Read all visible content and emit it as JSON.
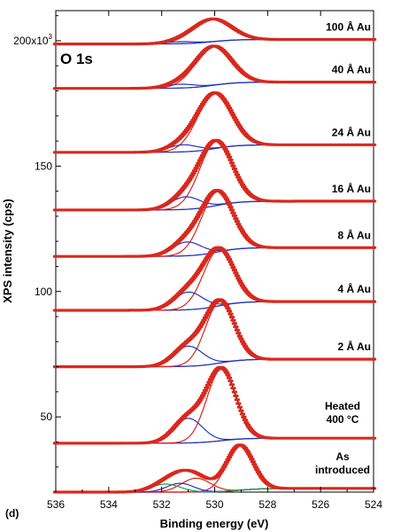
{
  "chart_data": {
    "type": "line",
    "panel_label": "(d)",
    "title": "O 1s",
    "xlabel": "Binding energy (eV)",
    "ylabel": "XPS intensity (cps)",
    "xlim": [
      536,
      524
    ],
    "ylim": [
      20000,
      212000
    ],
    "x_reversed": true,
    "x_ticks": [
      536,
      534,
      532,
      530,
      528,
      526,
      524
    ],
    "x_tick_labels": [
      "536",
      "534",
      "532",
      "530",
      "528",
      "526",
      "524"
    ],
    "y_ticks": [
      50000,
      100000,
      150000,
      200000
    ],
    "y_tick_labels": [
      "50",
      "100",
      "150",
      "200x10"
    ],
    "y_tick_exponent": "3",
    "grid": false,
    "colors": {
      "data_points": "#d9281e",
      "envelope_fit": "#1a1a1a",
      "component_fit": "#e0201a",
      "background": "#2233bb",
      "green_component": "#2a9a3a"
    },
    "series": [
      {
        "label": "100 Å Au",
        "baseline": 200500,
        "bg_drop": 1800,
        "peaks": [
          {
            "center": 530.1,
            "width": 0.72,
            "height": 9000
          },
          {
            "center": 531.3,
            "width": 0.55,
            "height": 800
          }
        ]
      },
      {
        "label": "40 Å Au",
        "baseline": 183500,
        "bg_drop": 2500,
        "peaks": [
          {
            "center": 530.05,
            "width": 0.68,
            "height": 15500
          },
          {
            "center": 531.3,
            "width": 0.55,
            "height": 1500
          }
        ]
      },
      {
        "label": "24 Å Au",
        "baseline": 158500,
        "bg_drop": 3000,
        "peaks": [
          {
            "center": 530.0,
            "width": 0.65,
            "height": 22000
          },
          {
            "center": 531.2,
            "width": 0.55,
            "height": 2800
          }
        ]
      },
      {
        "label": "16 Å Au",
        "baseline": 136000,
        "bg_drop": 3500,
        "peaks": [
          {
            "center": 529.95,
            "width": 0.62,
            "height": 25500
          },
          {
            "center": 531.1,
            "width": 0.55,
            "height": 5000
          }
        ]
      },
      {
        "label": "8 Å Au",
        "baseline": 117500,
        "bg_drop": 3500,
        "peaks": [
          {
            "center": 529.9,
            "width": 0.6,
            "height": 24000
          },
          {
            "center": 531.05,
            "width": 0.55,
            "height": 5500
          }
        ]
      },
      {
        "label": "4 Å Au",
        "baseline": 96000,
        "bg_drop": 3500,
        "peaks": [
          {
            "center": 529.85,
            "width": 0.58,
            "height": 22500
          },
          {
            "center": 531.0,
            "width": 0.55,
            "height": 7000
          }
        ]
      },
      {
        "label": "2 Å Au",
        "baseline": 73000,
        "bg_drop": 3000,
        "peaks": [
          {
            "center": 529.8,
            "width": 0.55,
            "height": 24500
          },
          {
            "center": 531.0,
            "width": 0.55,
            "height": 8000
          }
        ]
      },
      {
        "label": "Heated\n400 °C",
        "baseline": 41500,
        "bg_drop": 2000,
        "peaks": [
          {
            "center": 529.75,
            "width": 0.55,
            "height": 28500
          },
          {
            "center": 531.0,
            "width": 0.55,
            "height": 9800
          }
        ]
      },
      {
        "label": "As\nintroduced",
        "baseline": 21500,
        "bg_drop": 1500,
        "peaks": [
          {
            "center": 529.05,
            "width": 0.5,
            "height": 18000
          },
          {
            "center": 530.7,
            "width": 0.55,
            "height": 5500
          },
          {
            "center": 531.3,
            "width": 0.5,
            "height": 3500
          },
          {
            "center": 531.85,
            "width": 0.55,
            "height": 3200
          }
        ],
        "green_peak_index": 3
      }
    ]
  }
}
